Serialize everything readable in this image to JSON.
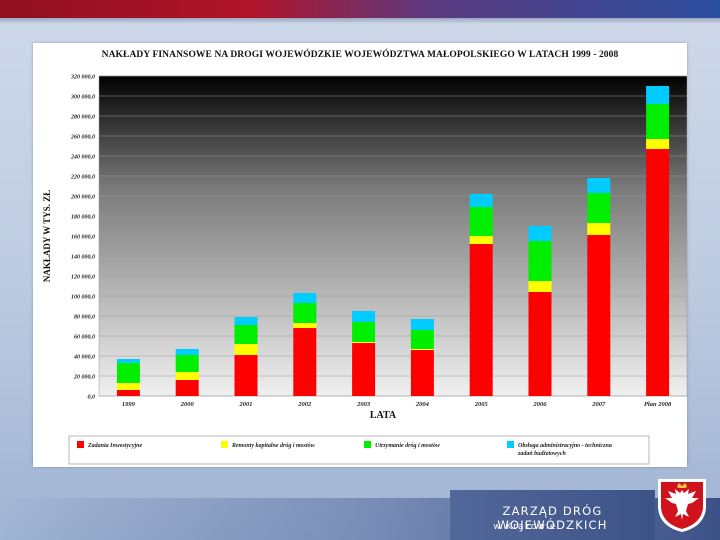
{
  "chart_data": {
    "type": "bar",
    "stacked": true,
    "title": "NAKŁADY FINANSOWE NA DROGI WOJEWÓDZKIE WOJEWÓDZTWA MAŁOPOLSKIEGO W LATACH 1999 - 2008",
    "xlabel": "LATA",
    "ylabel": "NAKŁADY W TYS. ZŁ",
    "ylim": [
      0,
      320000
    ],
    "yticks": [
      "0,0",
      "20 000,0",
      "40 000,0",
      "60 000,0",
      "80 000,0",
      "100 000,0",
      "120 000,0",
      "140 000,0",
      "160 000,0",
      "180 000,0",
      "200 000,0",
      "220 000,0",
      "240 000,0",
      "260 000,0",
      "280 000,0",
      "300 000,0",
      "320 000,0"
    ],
    "categories": [
      "1999",
      "2000",
      "2001",
      "2002",
      "2003",
      "2004",
      "2005",
      "2006",
      "2007",
      "Plan 2008"
    ],
    "series": [
      {
        "name": "Zadania Inwestycyjne",
        "color": "#ff0000",
        "values": [
          6000,
          16000,
          41000,
          68000,
          53000,
          46000,
          152000,
          104000,
          161000,
          247000
        ]
      },
      {
        "name": "Remonty kapitalne dróg i mostów",
        "color": "#ffff00",
        "values": [
          7000,
          8000,
          11000,
          5000,
          1000,
          1000,
          8000,
          11000,
          12000,
          10000
        ]
      },
      {
        "name": "Utrzymanie dróg i mostów",
        "color": "#00ee00",
        "values": [
          20000,
          17000,
          19000,
          20000,
          20000,
          19000,
          29000,
          40000,
          30000,
          35000
        ]
      },
      {
        "name": "Obsługa administracyjno - techniczna zadań budżetowych",
        "color": "#00ccff",
        "values": [
          4000,
          6000,
          8000,
          10000,
          11000,
          11000,
          13000,
          15000,
          15000,
          18000
        ]
      }
    ],
    "grid": true,
    "legend_position": "bottom"
  },
  "footer": {
    "org_name": "ZARZĄD DRÓG WOJEWÓDZKICH",
    "city": "w Krakowie",
    "crest_icon": "malopolska-eagle-crest"
  }
}
